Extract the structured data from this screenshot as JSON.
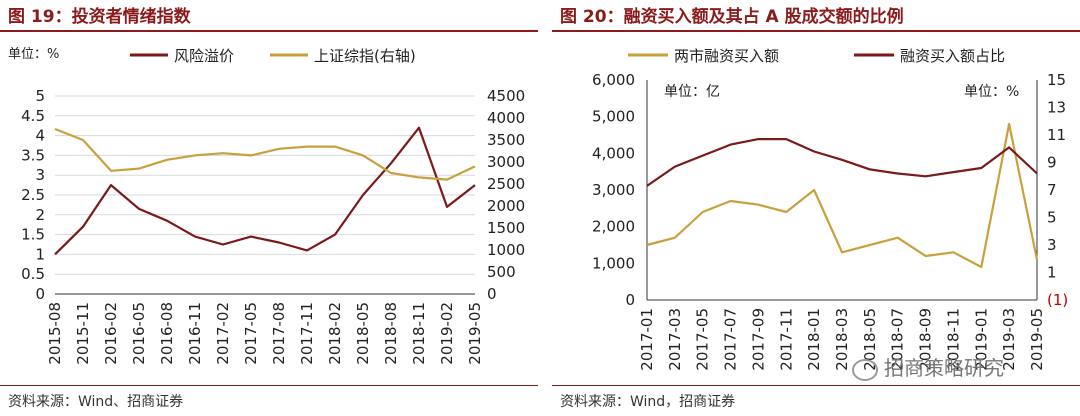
{
  "left": {
    "title": "图 19：投资者情绪指数",
    "unit_label": "单位：%",
    "source": "资料来源：Wind、招商证券"
  },
  "right": {
    "title": "图 20：融资买入额及其占 A 股成交额的比例",
    "unit_left": "单位：亿",
    "unit_right": "单位：%",
    "source": "资料来源：Wind，招商证券",
    "watermark": "招商策略研究"
  },
  "colors": {
    "dark_red": "#7a1a1a",
    "gold": "#c9a03c",
    "title_red": "#8b1a1a"
  },
  "chart_data": [
    {
      "type": "line",
      "title": "",
      "xlabel": "",
      "ylabel": "",
      "x": [
        "2015-08",
        "2015-11",
        "2016-02",
        "2016-05",
        "2016-08",
        "2016-11",
        "2017-02",
        "2017-05",
        "2017-08",
        "2017-11",
        "2018-02",
        "2018-05",
        "2018-08",
        "2018-11",
        "2019-02",
        "2019-05"
      ],
      "x_ticks": [
        "2015-08",
        "2015-11",
        "2016-02",
        "2016-05",
        "2016-08",
        "2016-11",
        "2017-02",
        "2017-05",
        "2017-08",
        "2017-11",
        "2018-02",
        "2018-05",
        "2018-08",
        "2018-11",
        "2019-02",
        "2019-05"
      ],
      "ylim": [
        0,
        5
      ],
      "y_ticks": [
        "0",
        "0.5",
        "1",
        "1.5",
        "2",
        "2.5",
        "3",
        "3.5",
        "4",
        "4.5",
        "5"
      ],
      "y2lim": [
        0,
        4500
      ],
      "y2_ticks": [
        "0",
        "500",
        "1000",
        "1500",
        "2000",
        "2500",
        "3000",
        "3500",
        "4000",
        "4500"
      ],
      "legend": "top-center",
      "grid": true,
      "series": [
        {
          "name": "风险溢价",
          "axis": "left",
          "color": "#7a1a1a",
          "values": [
            1.0,
            1.7,
            2.75,
            2.15,
            1.85,
            1.45,
            1.25,
            1.45,
            1.3,
            1.1,
            1.5,
            2.5,
            3.3,
            4.2,
            2.2,
            2.75
          ]
        },
        {
          "name": "上证综指(右轴)",
          "axis": "right",
          "color": "#c9a03c",
          "values": [
            3750,
            3500,
            2800,
            2850,
            3050,
            3150,
            3200,
            3150,
            3300,
            3350,
            3350,
            3150,
            2750,
            2650,
            2600,
            2900
          ]
        }
      ]
    },
    {
      "type": "line",
      "title": "",
      "xlabel": "",
      "ylabel": "",
      "x": [
        "2017-01",
        "2017-03",
        "2017-05",
        "2017-07",
        "2017-09",
        "2017-11",
        "2018-01",
        "2018-03",
        "2018-05",
        "2018-07",
        "2018-09",
        "2018-11",
        "2019-01",
        "2019-03",
        "2019-05"
      ],
      "x_ticks": [
        "2017-01",
        "2017-03",
        "2017-05",
        "2017-07",
        "2017-09",
        "2017-11",
        "2018-01",
        "2018-03",
        "2018-05",
        "2018-07",
        "2018-09",
        "2018-11",
        "2019-01",
        "2019-03",
        "2019-05"
      ],
      "ylim": [
        0,
        6000
      ],
      "y_ticks": [
        "0",
        "1,000",
        "2,000",
        "3,000",
        "4,000",
        "5,000",
        "6,000"
      ],
      "y2lim": [
        -1,
        15
      ],
      "y2_ticks": [
        "(1)",
        "1",
        "3",
        "5",
        "7",
        "9",
        "11",
        "13",
        "15"
      ],
      "legend": "top",
      "grid": false,
      "series": [
        {
          "name": "两市融资买入额",
          "axis": "left",
          "color": "#c9a03c",
          "values": [
            1500,
            1700,
            2400,
            2700,
            2600,
            2400,
            3000,
            1300,
            1500,
            1700,
            1200,
            1300,
            900,
            4800,
            1100
          ]
        },
        {
          "name": "融资买入额占比",
          "axis": "right",
          "color": "#7a1a1a",
          "values": [
            7.3,
            8.7,
            9.5,
            10.3,
            10.7,
            10.7,
            9.8,
            9.2,
            8.5,
            8.2,
            8.0,
            8.3,
            8.6,
            10.1,
            8.2
          ]
        }
      ]
    }
  ]
}
